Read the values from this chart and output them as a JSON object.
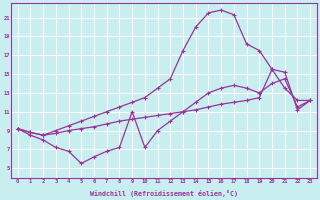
{
  "bg_color": "#c8eef0",
  "grid_color": "#ffffff",
  "line_color": "#993399",
  "xlabel": "Windchill (Refroidissement éolien,°C)",
  "x_ticks": [
    0,
    1,
    2,
    3,
    4,
    5,
    6,
    7,
    8,
    9,
    10,
    11,
    12,
    13,
    14,
    15,
    16,
    17,
    18,
    19,
    20,
    21,
    22,
    23
  ],
  "y_ticks": [
    5,
    7,
    9,
    11,
    13,
    15,
    17,
    19,
    21
  ],
  "xlim": [
    -0.5,
    23.5
  ],
  "ylim": [
    4.0,
    22.5
  ],
  "curve_arch_x": [
    0,
    1,
    2,
    3,
    4,
    5,
    6,
    7,
    8,
    9,
    10,
    11,
    12,
    13,
    14,
    15,
    16,
    17,
    18,
    19,
    20,
    21,
    22,
    23
  ],
  "curve_arch_y": [
    9.2,
    8.8,
    8.5,
    9.0,
    9.5,
    10.0,
    10.5,
    11.0,
    11.5,
    12.0,
    12.5,
    13.5,
    14.5,
    17.5,
    20.0,
    21.5,
    21.8,
    21.3,
    18.2,
    17.5,
    15.5,
    13.5,
    12.2,
    12.2
  ],
  "curve_diag_x": [
    0,
    1,
    2,
    3,
    4,
    5,
    6,
    7,
    8,
    9,
    10,
    11,
    12,
    13,
    14,
    15,
    16,
    17,
    18,
    19,
    20,
    21,
    22,
    23
  ],
  "curve_diag_y": [
    9.2,
    8.8,
    8.5,
    8.7,
    9.0,
    9.2,
    9.4,
    9.7,
    10.0,
    10.2,
    10.4,
    10.6,
    10.8,
    11.0,
    11.2,
    11.5,
    11.8,
    12.0,
    12.2,
    12.5,
    15.5,
    15.2,
    11.2,
    12.2
  ],
  "curve_jagged_x": [
    0,
    1,
    2,
    3,
    4,
    5,
    6,
    7,
    8,
    9,
    10,
    11,
    12,
    13,
    14,
    15,
    16,
    17,
    18,
    19,
    20,
    21,
    22,
    23
  ],
  "curve_jagged_y": [
    9.2,
    8.5,
    8.0,
    7.2,
    6.8,
    5.5,
    6.2,
    6.8,
    7.2,
    11.0,
    7.2,
    9.0,
    10.0,
    11.0,
    12.0,
    13.0,
    13.5,
    13.8,
    13.5,
    13.0,
    14.0,
    14.5,
    11.5,
    12.2
  ]
}
